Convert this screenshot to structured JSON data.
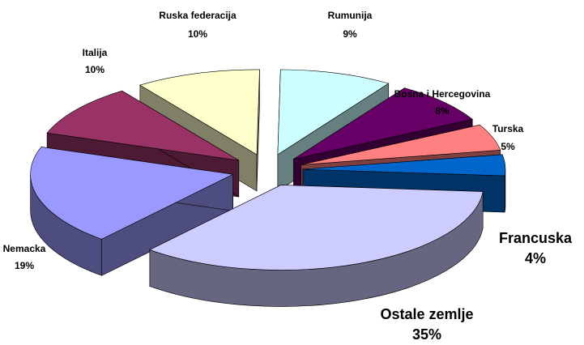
{
  "chart_data": {
    "type": "pie",
    "categories": [
      "Francuska",
      "Ostale zemlje",
      "Nemacka",
      "Italija",
      "Ruska federacija",
      "Rumunija",
      "Bosna i Hercegovina",
      "Turska"
    ],
    "values": [
      4,
      35,
      19,
      10,
      10,
      9,
      8,
      5
    ],
    "value_labels": [
      "4%",
      "35%",
      "19%",
      "10%",
      "10%",
      "9%",
      "8%",
      "5%"
    ],
    "colors": [
      "#0066cc",
      "#ccccff",
      "#9999ff",
      "#993366",
      "#ffffcc",
      "#ccffff",
      "#660066",
      "#ff8080"
    ]
  }
}
